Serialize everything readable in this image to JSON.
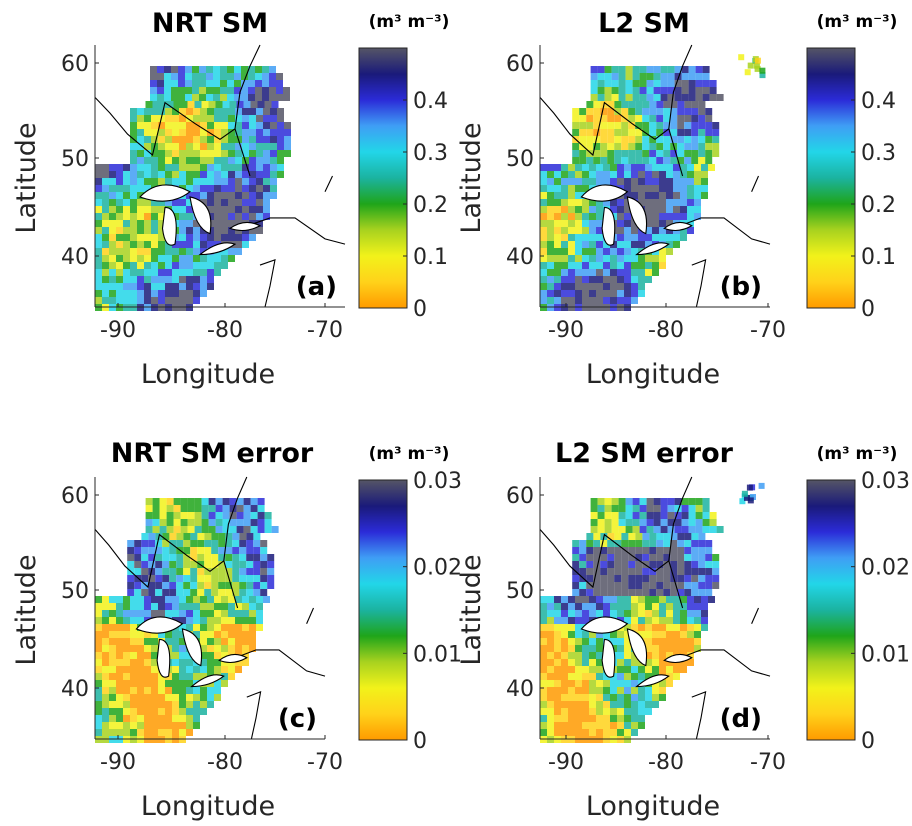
{
  "chart_data": [
    {
      "type": "heatmap",
      "panel_label": "(a)",
      "title": "NRT SM",
      "xlabel": "Longitude",
      "ylabel": "Latitude",
      "xlim": [
        -93,
        -68
      ],
      "ylim": [
        35,
        61.5
      ],
      "xticks": [
        "-90",
        "-80",
        "-70"
      ],
      "yticks": [
        "40",
        "50",
        "60"
      ],
      "colorbar": {
        "unit_label": "(m³ m⁻³)",
        "range": [
          0,
          0.5
        ],
        "ticks": [
          "0",
          "0.1",
          "0.2",
          "0.3",
          "0.4"
        ]
      }
    },
    {
      "type": "heatmap",
      "panel_label": "(b)",
      "title": "L2 SM",
      "xlabel": "Longitude",
      "ylabel": "Latitude",
      "xlim": [
        -93,
        -68
      ],
      "ylim": [
        35,
        61.5
      ],
      "xticks": [
        "-90",
        "-80",
        "-70"
      ],
      "yticks": [
        "40",
        "50",
        "60"
      ],
      "colorbar": {
        "unit_label": "(m³ m⁻³)",
        "range": [
          0,
          0.5
        ],
        "ticks": [
          "0",
          "0.1",
          "0.2",
          "0.3",
          "0.4"
        ]
      }
    },
    {
      "type": "heatmap",
      "panel_label": "(c)",
      "title": "NRT SM error",
      "xlabel": "Longitude",
      "ylabel": "Latitude",
      "xlim": [
        -93,
        -68
      ],
      "ylim": [
        35,
        61.5
      ],
      "xticks": [
        "-90",
        "-80",
        "-70"
      ],
      "yticks": [
        "40",
        "50",
        "60"
      ],
      "colorbar": {
        "unit_label": "(m³ m⁻³)",
        "range": [
          0,
          0.03
        ],
        "ticks": [
          "0",
          "0.01",
          "0.02",
          "0.03"
        ]
      }
    },
    {
      "type": "heatmap",
      "panel_label": "(d)",
      "title": "L2 SM error",
      "xlabel": "Longitude",
      "ylabel": "Latitude",
      "xlim": [
        -93,
        -68
      ],
      "ylim": [
        35,
        61.5
      ],
      "xticks": [
        "-90",
        "-80",
        "-70"
      ],
      "yticks": [
        "40",
        "50",
        "60"
      ],
      "colorbar": {
        "unit_label": "(m³ m⁻³)",
        "range": [
          0,
          0.03
        ],
        "ticks": [
          "0",
          "0.01",
          "0.02",
          "0.03"
        ]
      }
    }
  ],
  "colormap": [
    "#ff9a00",
    "#ffd21a",
    "#f2f21a",
    "#a8d21f",
    "#1fa51a",
    "#1bb3a0",
    "#22d6e8",
    "#3f9ef5",
    "#2b2bd8",
    "#1a1a7a",
    "#555566"
  ]
}
